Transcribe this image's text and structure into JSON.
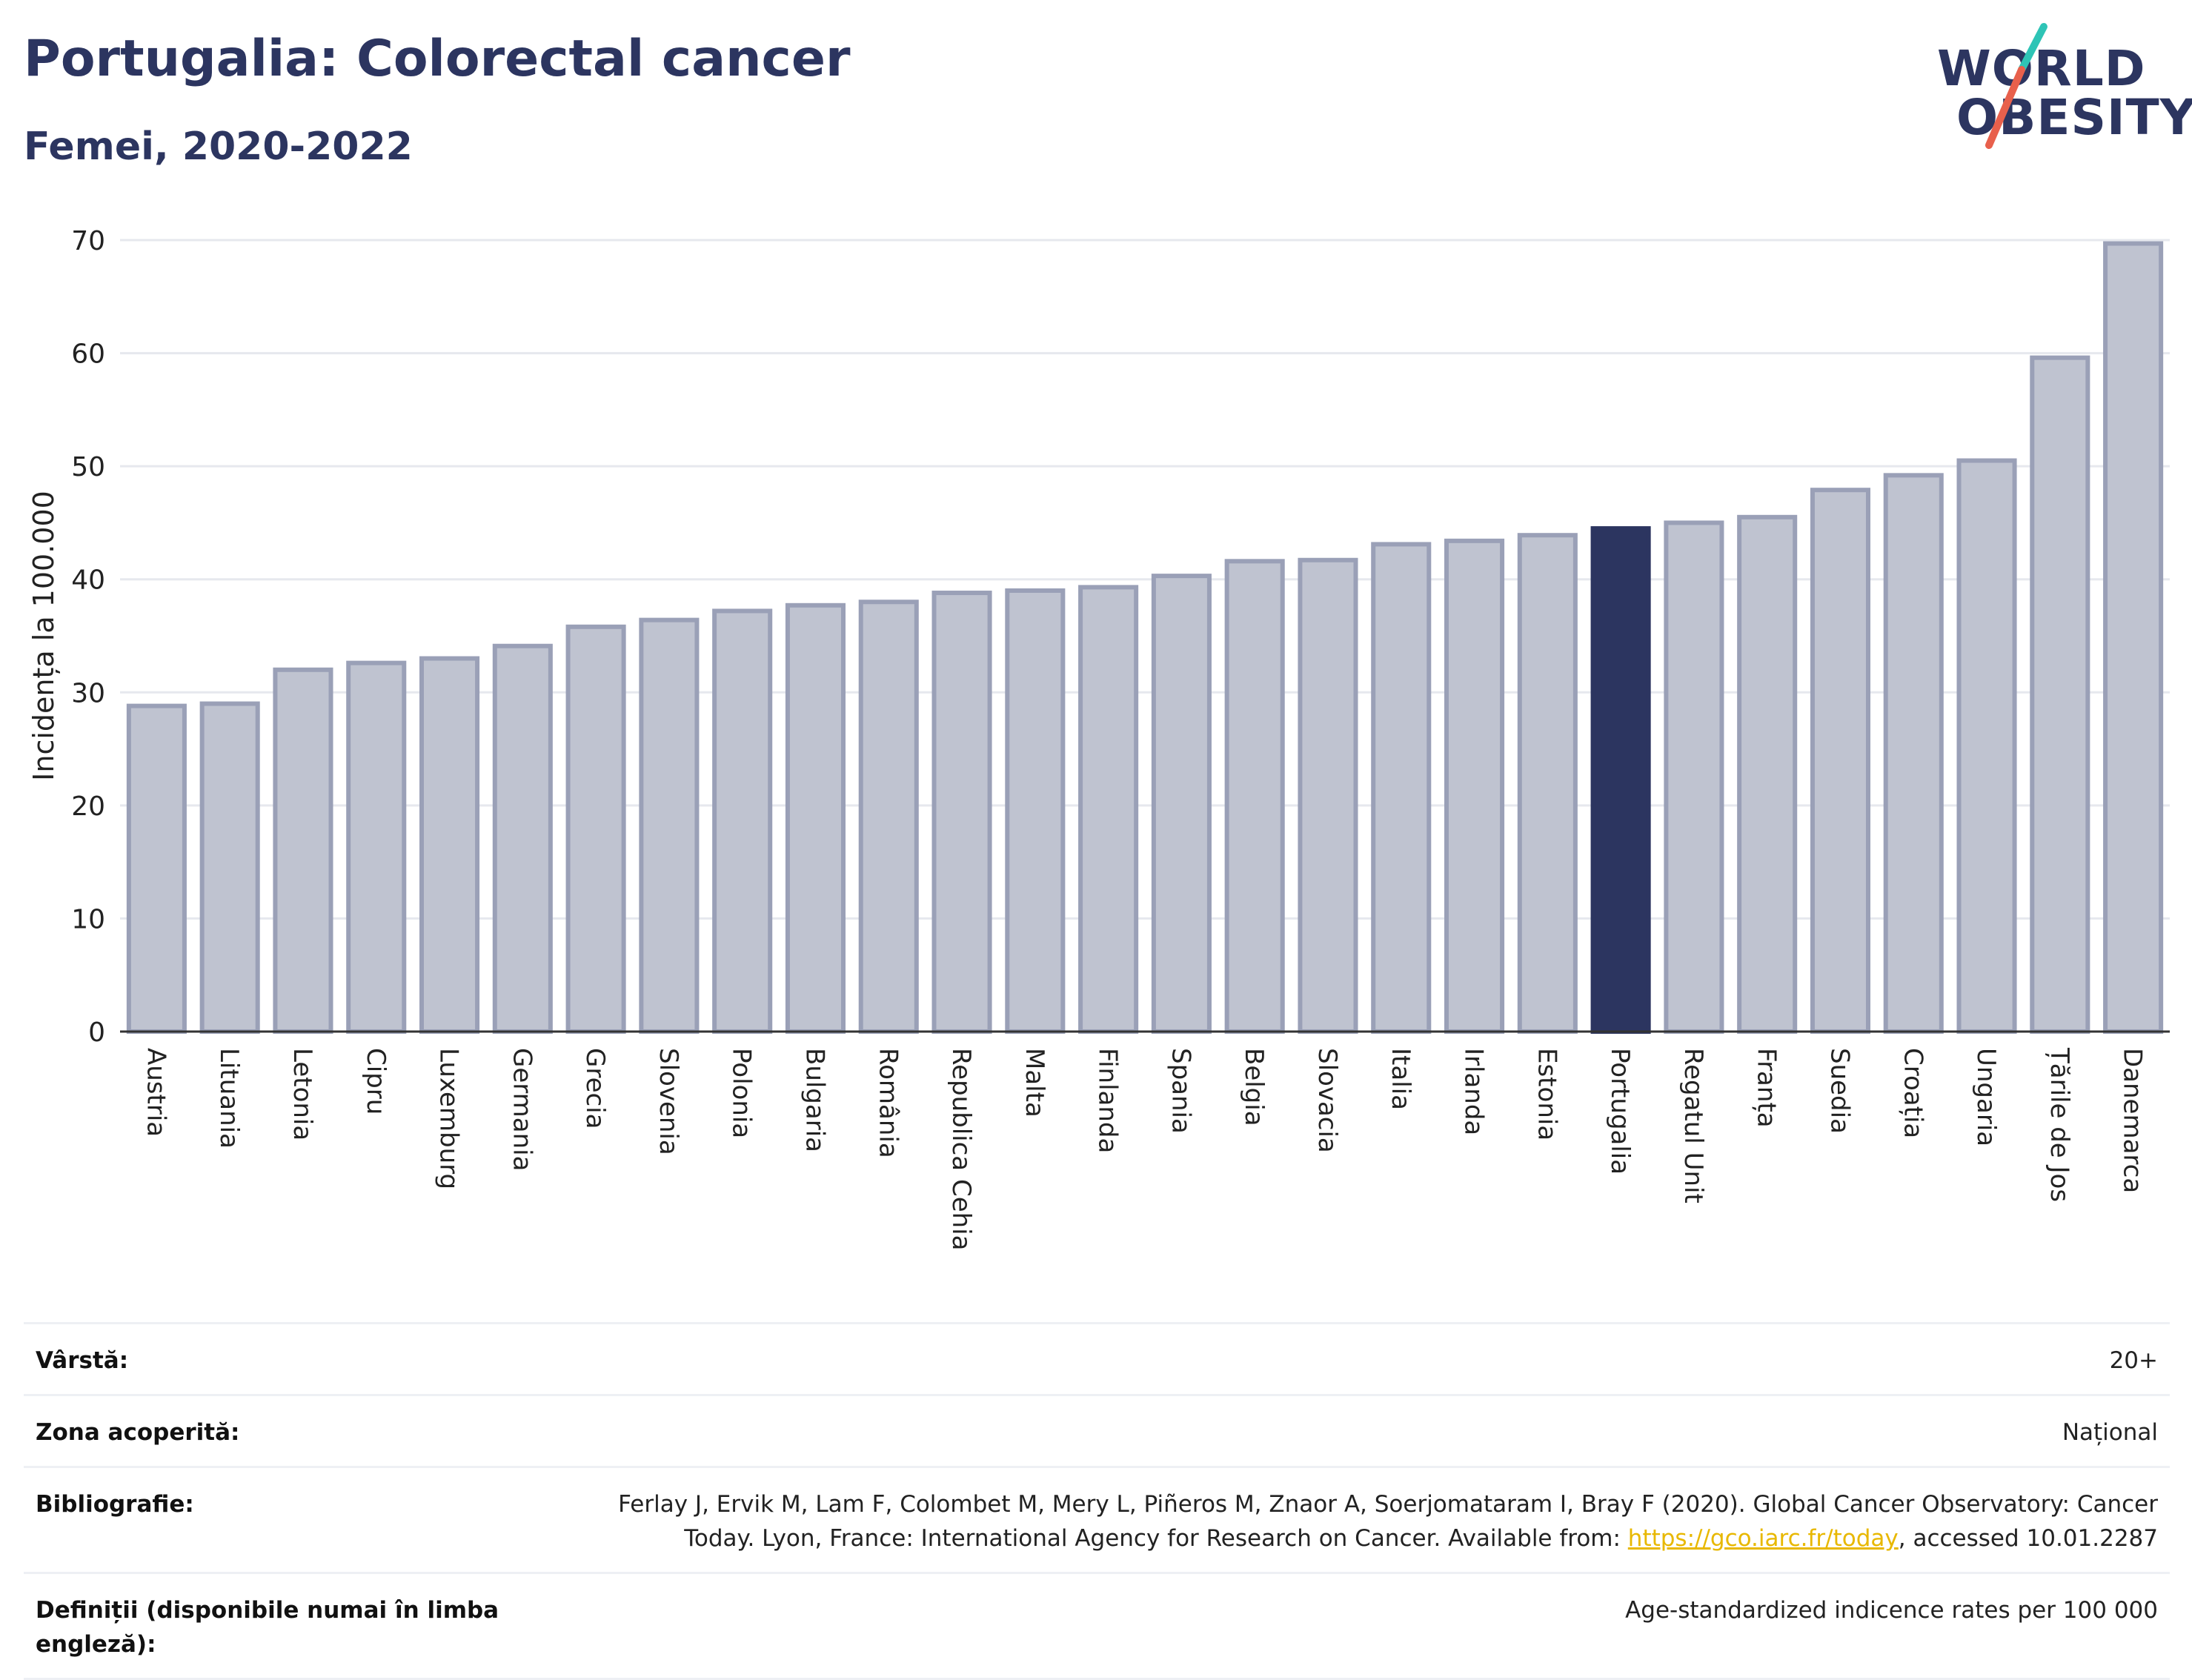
{
  "header": {
    "title": "Portugalia: Colorectal cancer",
    "subtitle": "Femei, 2020-2022"
  },
  "logo": {
    "line1": "WORLD",
    "line2": "OBESITY",
    "accent_teal": "#2ec4b6",
    "accent_red": "#e8604c"
  },
  "colors": {
    "bar_default": "#bfc3d0",
    "bar_border": "#9aa0b7",
    "bar_highlight": "#2c3560",
    "text_dark": "#2c3560",
    "link": "#e8b800"
  },
  "chart_data": {
    "type": "bar",
    "ylabel": "Incidența la 100.000",
    "xlabel": "",
    "ylim": [
      0,
      70
    ],
    "yticks": [
      0,
      10,
      20,
      30,
      40,
      50,
      60,
      70
    ],
    "grid": true,
    "highlight": "Portugalia",
    "categories": [
      "Austria",
      "Lituania",
      "Letonia",
      "Cipru",
      "Luxemburg",
      "Germania",
      "Grecia",
      "Slovenia",
      "Polonia",
      "Bulgaria",
      "România",
      "Republica Cehia",
      "Malta",
      "Finlanda",
      "Spania",
      "Belgia",
      "Slovacia",
      "Italia",
      "Irlanda",
      "Estonia",
      "Portugalia",
      "Regatul Unit",
      "Franța",
      "Suedia",
      "Croația",
      "Ungaria",
      "Țările de Jos",
      "Danemarca"
    ],
    "values": [
      28.8,
      29.0,
      32.0,
      32.6,
      33.0,
      34.1,
      35.8,
      36.4,
      37.2,
      37.7,
      38.0,
      38.8,
      39.0,
      39.3,
      40.3,
      41.6,
      41.7,
      43.1,
      43.4,
      43.9,
      44.5,
      45.0,
      45.5,
      47.9,
      49.2,
      50.5,
      59.6,
      69.7
    ]
  },
  "info": {
    "rows": [
      {
        "label": "Vârstă:",
        "value": "20+"
      },
      {
        "label": "Zona acoperită:",
        "value": "Național"
      },
      {
        "label": "Bibliografie:",
        "value_before": "Ferlay J, Ervik M, Lam F, Colombet M, Mery L, Piñeros M, Znaor A, Soerjomataram I, Bray F (2020). Global Cancer Observatory: Cancer Today. Lyon, France: International Agency for Research on Cancer. Available from: ",
        "link": "https://gco.iarc.fr/today",
        "value_after": ", accessed 10.01.2287"
      },
      {
        "label": "Definiții (disponibile numai în limba engleză):",
        "value": "Age-standardized indicence rates per 100 000"
      }
    ]
  }
}
